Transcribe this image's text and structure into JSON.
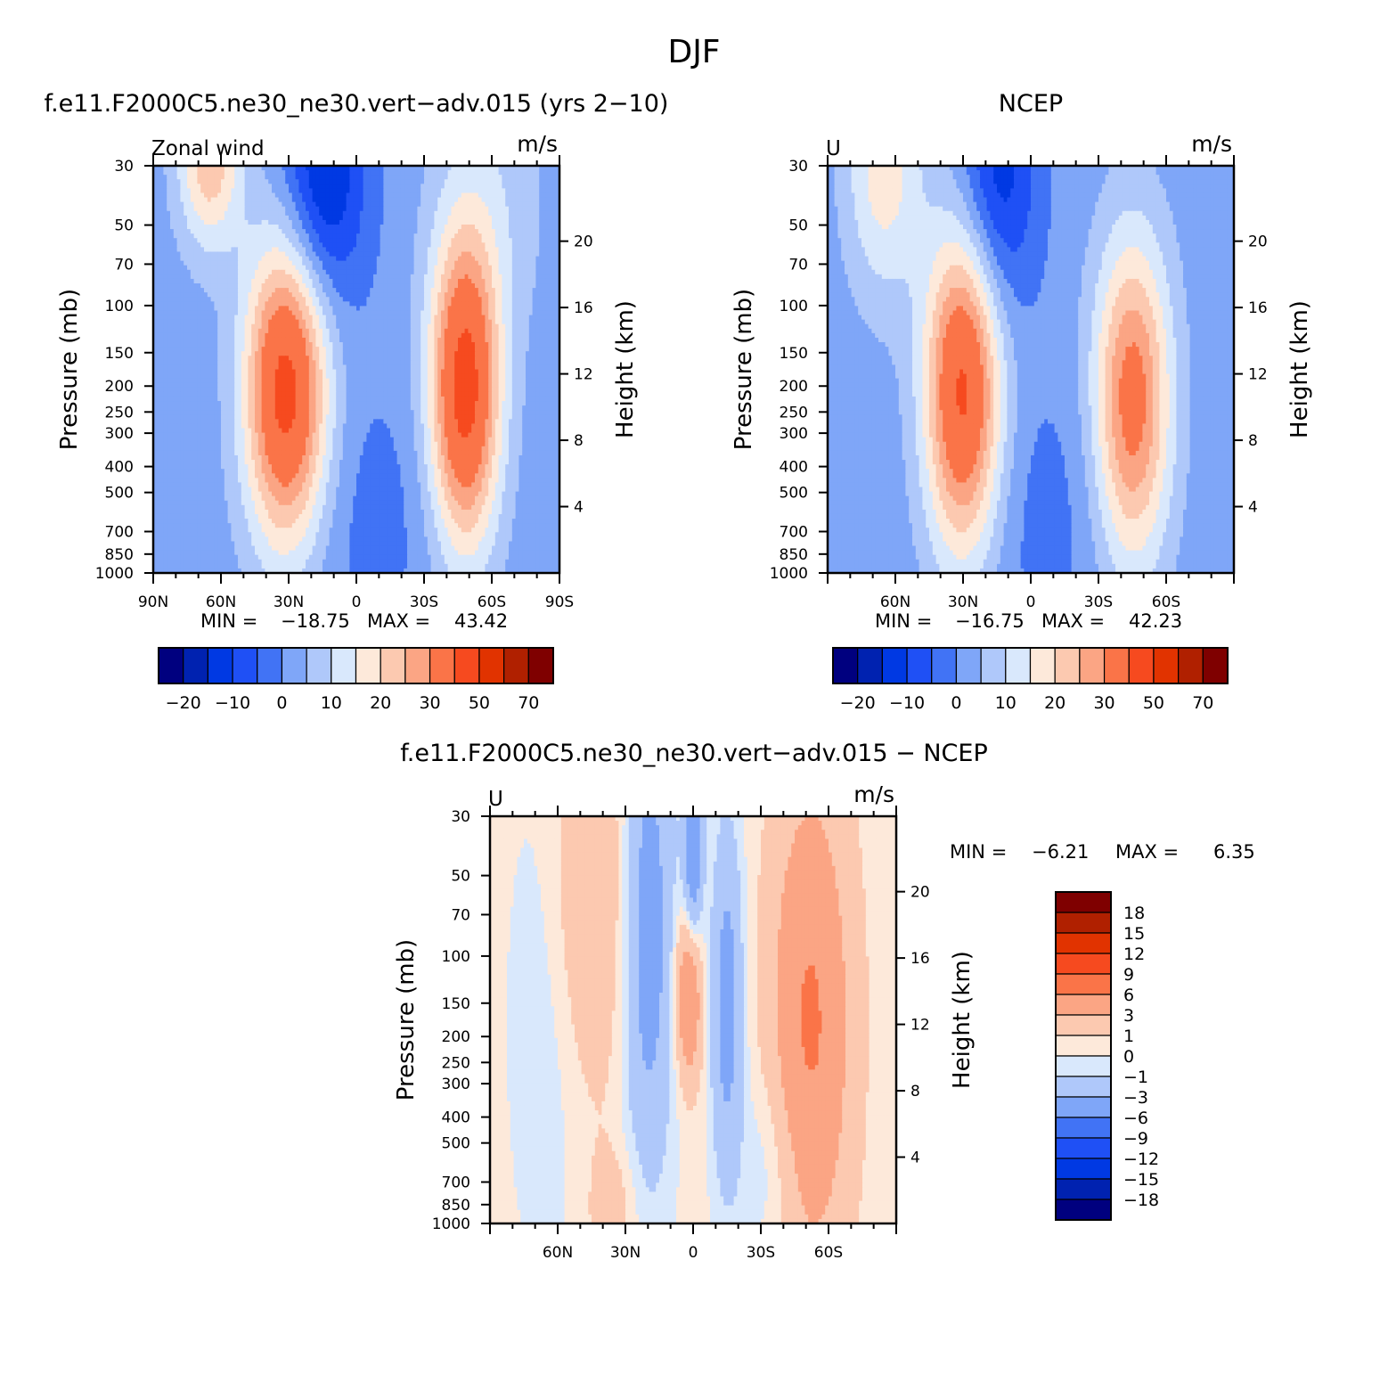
{
  "page_title": "DJF",
  "colors": {
    "main_scale": [
      "#00007f",
      "#0022b0",
      "#0039e3",
      "#1f50f5",
      "#4173f5",
      "#7fa6f8",
      "#afc8fa",
      "#d9e8fc",
      "#fde9da",
      "#fcc9b0",
      "#fba584",
      "#fa7448",
      "#f64a1f",
      "#e13300",
      "#b02000",
      "#7f0000"
    ],
    "diff_scale": [
      "#00007f",
      "#0022b0",
      "#0039e3",
      "#1f50f5",
      "#4173f5",
      "#7fa6f8",
      "#afc8fa",
      "#d9e8fc",
      "#fde9da",
      "#fcc9b0",
      "#fba584",
      "#fa7448",
      "#f64a1f",
      "#e13300",
      "#b02000",
      "#7f0000"
    ]
  },
  "chart_data": [
    {
      "id": "model",
      "type": "heatmap",
      "title": "f.e11.F2000C5.ne30_ne30.vert−adv.015 (yrs 2−10)",
      "left_label": "Zonal wind",
      "units": "m/s",
      "ylabel": "Pressure (mb)",
      "y2label": "Height (km)",
      "x_ticks": [
        "90N",
        "60N",
        "30N",
        "0",
        "30S",
        "60S",
        "90S"
      ],
      "y_ticks": [
        "30",
        "50",
        "70",
        "100",
        "150",
        "200",
        "250",
        "300",
        "400",
        "500",
        "700",
        "850",
        "1000"
      ],
      "y2_ticks": [
        "20",
        "16",
        "12",
        "8",
        "4"
      ],
      "stats": {
        "min_label": "MIN =",
        "min": "−18.75",
        "max_label": "MAX =",
        "max": "43.42"
      },
      "colorbar_labels": [
        "−20",
        "−10",
        "0",
        "10",
        "20",
        "30",
        "50",
        "70"
      ]
    },
    {
      "id": "obs",
      "type": "heatmap",
      "title": "NCEP",
      "left_label": "U",
      "units": "m/s",
      "ylabel": "Pressure (mb)",
      "y2label": "Height (km)",
      "x_ticks": [
        "60N",
        "30N",
        "0",
        "30S",
        "60S"
      ],
      "y_ticks": [
        "30",
        "50",
        "70",
        "100",
        "150",
        "200",
        "250",
        "300",
        "400",
        "500",
        "700",
        "850",
        "1000"
      ],
      "y2_ticks": [
        "20",
        "16",
        "12",
        "8",
        "4"
      ],
      "stats": {
        "min_label": "MIN =",
        "min": "−16.75",
        "max_label": "MAX =",
        "max": "42.23"
      },
      "colorbar_labels": [
        "−20",
        "−10",
        "0",
        "10",
        "20",
        "30",
        "50",
        "70"
      ]
    },
    {
      "id": "diff",
      "type": "heatmap",
      "title": "f.e11.F2000C5.ne30_ne30.vert−adv.015 − NCEP",
      "left_label": "U",
      "units": "m/s",
      "ylabel": "Pressure (mb)",
      "y2label": "Height (km)",
      "x_ticks": [
        "60N",
        "30N",
        "0",
        "30S",
        "60S"
      ],
      "y_ticks": [
        "30",
        "50",
        "70",
        "100",
        "150",
        "200",
        "250",
        "300",
        "400",
        "500",
        "700",
        "850",
        "1000"
      ],
      "y2_ticks": [
        "20",
        "16",
        "12",
        "8",
        "4"
      ],
      "stats": {
        "min_label": "MIN =",
        "min": "−6.21",
        "max_label": "MAX =",
        "max": "6.35"
      },
      "colorbar_labels": [
        "18",
        "15",
        "12",
        "9",
        "6",
        "3",
        "1",
        "0",
        "−1",
        "−3",
        "−6",
        "−9",
        "−12",
        "−15",
        "−18"
      ]
    }
  ]
}
